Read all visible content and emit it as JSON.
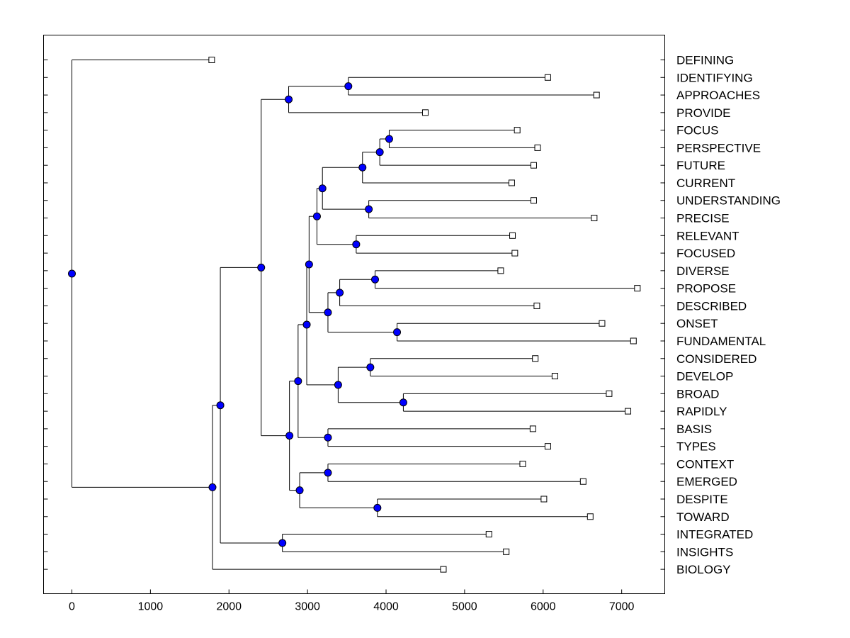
{
  "chart_data": {
    "type": "dendrogram",
    "orientation": "horizontal",
    "title": "",
    "xlabel": "",
    "ylabel": "",
    "xlim": [
      -350,
      7550
    ],
    "xticks": [
      0,
      1000,
      2000,
      3000,
      4000,
      5000,
      6000,
      7000
    ],
    "xtick_labels": [
      "0",
      "1000",
      "2000",
      "3000",
      "4000",
      "5000",
      "6000",
      "7000"
    ],
    "leaf_marker_color": "#ffffff",
    "node_marker_color": "#0000ff",
    "leaves": [
      {
        "label": "DEFINING",
        "value": 1780
      },
      {
        "label": "IDENTIFYING",
        "value": 6060
      },
      {
        "label": "APPROACHES",
        "value": 6680
      },
      {
        "label": "PROVIDE",
        "value": 4500
      },
      {
        "label": "FOCUS",
        "value": 5670
      },
      {
        "label": "PERSPECTIVE",
        "value": 5930
      },
      {
        "label": "FUTURE",
        "value": 5880
      },
      {
        "label": "CURRENT",
        "value": 5600
      },
      {
        "label": "UNDERSTANDING",
        "value": 5880
      },
      {
        "label": "PRECISE",
        "value": 6650
      },
      {
        "label": "RELEVANT",
        "value": 5610
      },
      {
        "label": "FOCUSED",
        "value": 5640
      },
      {
        "label": "DIVERSE",
        "value": 5460
      },
      {
        "label": "PROPOSE",
        "value": 7200
      },
      {
        "label": "DESCRIBED",
        "value": 5920
      },
      {
        "label": "ONSET",
        "value": 6750
      },
      {
        "label": "FUNDAMENTAL",
        "value": 7150
      },
      {
        "label": "CONSIDERED",
        "value": 5900
      },
      {
        "label": "DEVELOP",
        "value": 6150
      },
      {
        "label": "BROAD",
        "value": 6840
      },
      {
        "label": "RAPIDLY",
        "value": 7080
      },
      {
        "label": "BASIS",
        "value": 5870
      },
      {
        "label": "TYPES",
        "value": 6060
      },
      {
        "label": "CONTEXT",
        "value": 5740
      },
      {
        "label": "EMERGED",
        "value": 6510
      },
      {
        "label": "DESPITE",
        "value": 6010
      },
      {
        "label": "TOWARD",
        "value": 6600
      },
      {
        "label": "INTEGRATED",
        "value": 5310
      },
      {
        "label": "INSIGHTS",
        "value": 5530
      },
      {
        "label": "BIOLOGY",
        "value": 4730
      }
    ],
    "nodes": [
      {
        "id": "n0",
        "value": 3520,
        "children": [
          1,
          2
        ]
      },
      {
        "id": "n1",
        "value": 2760,
        "children": [
          "n0",
          3
        ]
      },
      {
        "id": "n2",
        "value": 4040,
        "children": [
          4,
          5
        ]
      },
      {
        "id": "n3",
        "value": 3920,
        "children": [
          "n2",
          6
        ]
      },
      {
        "id": "n4",
        "value": 3700,
        "children": [
          "n3",
          7
        ]
      },
      {
        "id": "n5",
        "value": 3780,
        "children": [
          8,
          9
        ]
      },
      {
        "id": "n6",
        "value": 3190,
        "children": [
          "n4",
          "n5"
        ]
      },
      {
        "id": "n7",
        "value": 3620,
        "children": [
          10,
          11
        ]
      },
      {
        "id": "n8",
        "value": 3120,
        "children": [
          "n6",
          "n7"
        ]
      },
      {
        "id": "n9",
        "value": 3860,
        "children": [
          12,
          13
        ]
      },
      {
        "id": "n10",
        "value": 3410,
        "children": [
          "n9",
          14
        ]
      },
      {
        "id": "n11",
        "value": 4140,
        "children": [
          15,
          16
        ]
      },
      {
        "id": "n12",
        "value": 3260,
        "children": [
          "n10",
          "n11"
        ]
      },
      {
        "id": "n13",
        "value": 3020,
        "children": [
          "n8",
          "n12"
        ]
      },
      {
        "id": "n14",
        "value": 3800,
        "children": [
          17,
          18
        ]
      },
      {
        "id": "n15",
        "value": 4220,
        "children": [
          19,
          20
        ]
      },
      {
        "id": "n16",
        "value": 3390,
        "children": [
          "n14",
          "n15"
        ]
      },
      {
        "id": "n17",
        "value": 2990,
        "children": [
          "n13",
          "n16"
        ]
      },
      {
        "id": "n18",
        "value": 3260,
        "children": [
          21,
          22
        ]
      },
      {
        "id": "n19",
        "value": 2880,
        "children": [
          "n17",
          "n18"
        ]
      },
      {
        "id": "n20",
        "value": 3260,
        "children": [
          23,
          24
        ]
      },
      {
        "id": "n21",
        "value": 3890,
        "children": [
          25,
          26
        ]
      },
      {
        "id": "n22",
        "value": 2900,
        "children": [
          "n20",
          "n21"
        ]
      },
      {
        "id": "n23",
        "value": 2770,
        "children": [
          "n19",
          "n22"
        ]
      },
      {
        "id": "n24",
        "value": 2410,
        "children": [
          "n1",
          "n23"
        ]
      },
      {
        "id": "n25",
        "value": 2680,
        "children": [
          27,
          28
        ]
      },
      {
        "id": "n26",
        "value": 1890,
        "children": [
          "n24",
          "n25"
        ]
      },
      {
        "id": "n27",
        "value": 1790,
        "children": [
          "n26",
          29
        ]
      },
      {
        "id": "n28",
        "value": 0,
        "children": [
          0,
          "n27"
        ]
      }
    ]
  }
}
